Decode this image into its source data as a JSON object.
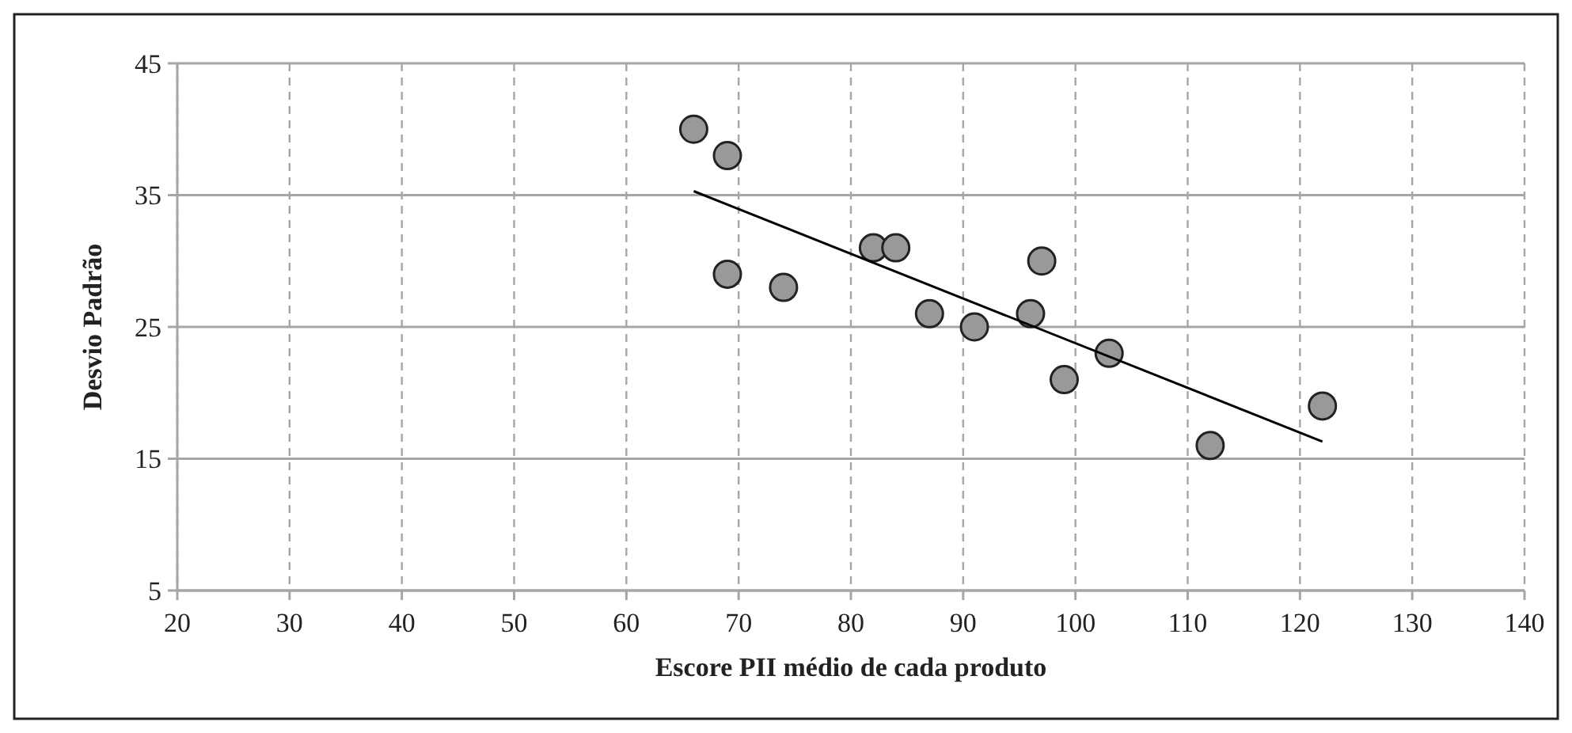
{
  "chart_data": {
    "type": "scatter",
    "xlabel": "Escore PII médio de cada produto",
    "ylabel": "Desvio Padrão",
    "xlim": [
      20,
      140
    ],
    "xticks": [
      20,
      30,
      40,
      50,
      60,
      70,
      80,
      90,
      100,
      110,
      120,
      130,
      140
    ],
    "ylim": [
      5,
      45
    ],
    "yticks": [
      5,
      15,
      25,
      35,
      45
    ],
    "grid": true,
    "series": [
      {
        "color": "#999999",
        "marker": "circle",
        "x": [
          66,
          69,
          69,
          74,
          82,
          84,
          87,
          91,
          96,
          97,
          99,
          103,
          112,
          122
        ],
        "values": [
          40,
          38,
          29,
          28,
          31,
          31,
          26,
          25,
          26,
          30,
          21,
          23,
          16,
          19
        ]
      },
      {
        "type": "line",
        "color": "#000000",
        "marker": "none",
        "x": [
          66,
          122
        ],
        "values": [
          35.3,
          16.3
        ],
        "line_style": "solid"
      }
    ]
  }
}
